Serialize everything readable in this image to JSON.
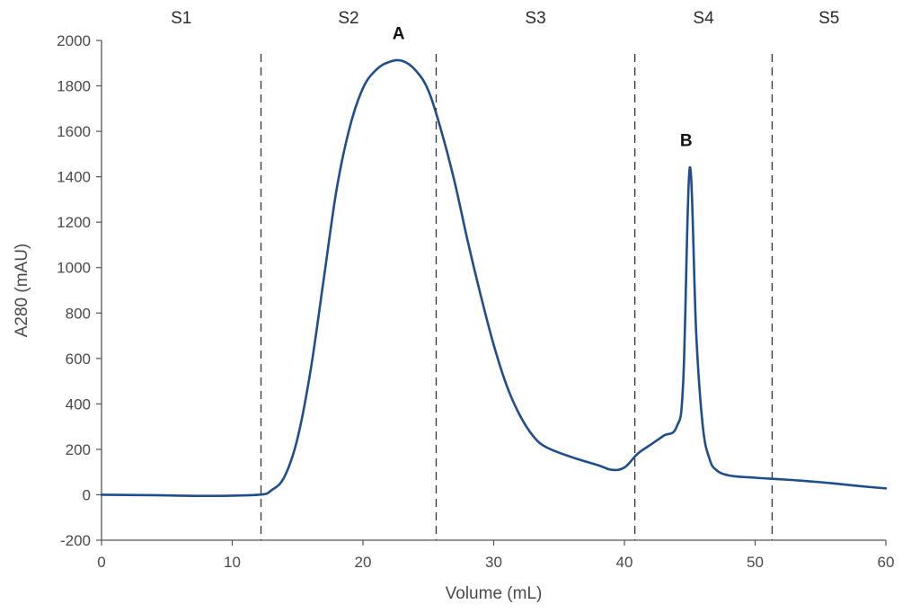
{
  "chart_data": {
    "type": "line",
    "title": "",
    "xlabel": "Volume (mL)",
    "ylabel": "A280 (mAU)",
    "xlim": [
      0,
      60
    ],
    "ylim": [
      -200,
      2000
    ],
    "x_ticks": [
      0,
      10,
      20,
      30,
      40,
      50,
      60
    ],
    "y_ticks": [
      -200,
      0,
      200,
      400,
      600,
      800,
      1000,
      1200,
      1400,
      1600,
      1800,
      2000
    ],
    "grid": false,
    "legend": "none",
    "line_color": "#1f4e8c",
    "series": [
      {
        "x": [
          0,
          4,
          8,
          12,
          13,
          14,
          15,
          16,
          17,
          18,
          19,
          20,
          21,
          22,
          23,
          24,
          25,
          26,
          27,
          28,
          29,
          30,
          31,
          32,
          33,
          34,
          36,
          38,
          39,
          40,
          41,
          42,
          43,
          44,
          44.5,
          45,
          45.5,
          46,
          46.5,
          47,
          48,
          50,
          52,
          54,
          56,
          58,
          60
        ],
        "y": [
          0,
          -2,
          -5,
          0,
          20,
          80,
          250,
          550,
          950,
          1350,
          1620,
          1790,
          1870,
          1905,
          1910,
          1870,
          1780,
          1600,
          1380,
          1120,
          880,
          660,
          480,
          350,
          260,
          210,
          165,
          130,
          110,
          120,
          180,
          220,
          260,
          300,
          500,
          1440,
          700,
          300,
          160,
          110,
          85,
          75,
          68,
          60,
          50,
          38,
          28
        ]
      }
    ],
    "annotations": [
      {
        "text": "A",
        "x": 23,
        "y": 1910
      },
      {
        "text": "B",
        "x": 45,
        "y": 1440
      }
    ],
    "regions": {
      "labels": [
        "S1",
        "S2",
        "S3",
        "S4",
        "S5"
      ],
      "boundaries": [
        12.2,
        25.6,
        40.8,
        51.3
      ]
    }
  }
}
